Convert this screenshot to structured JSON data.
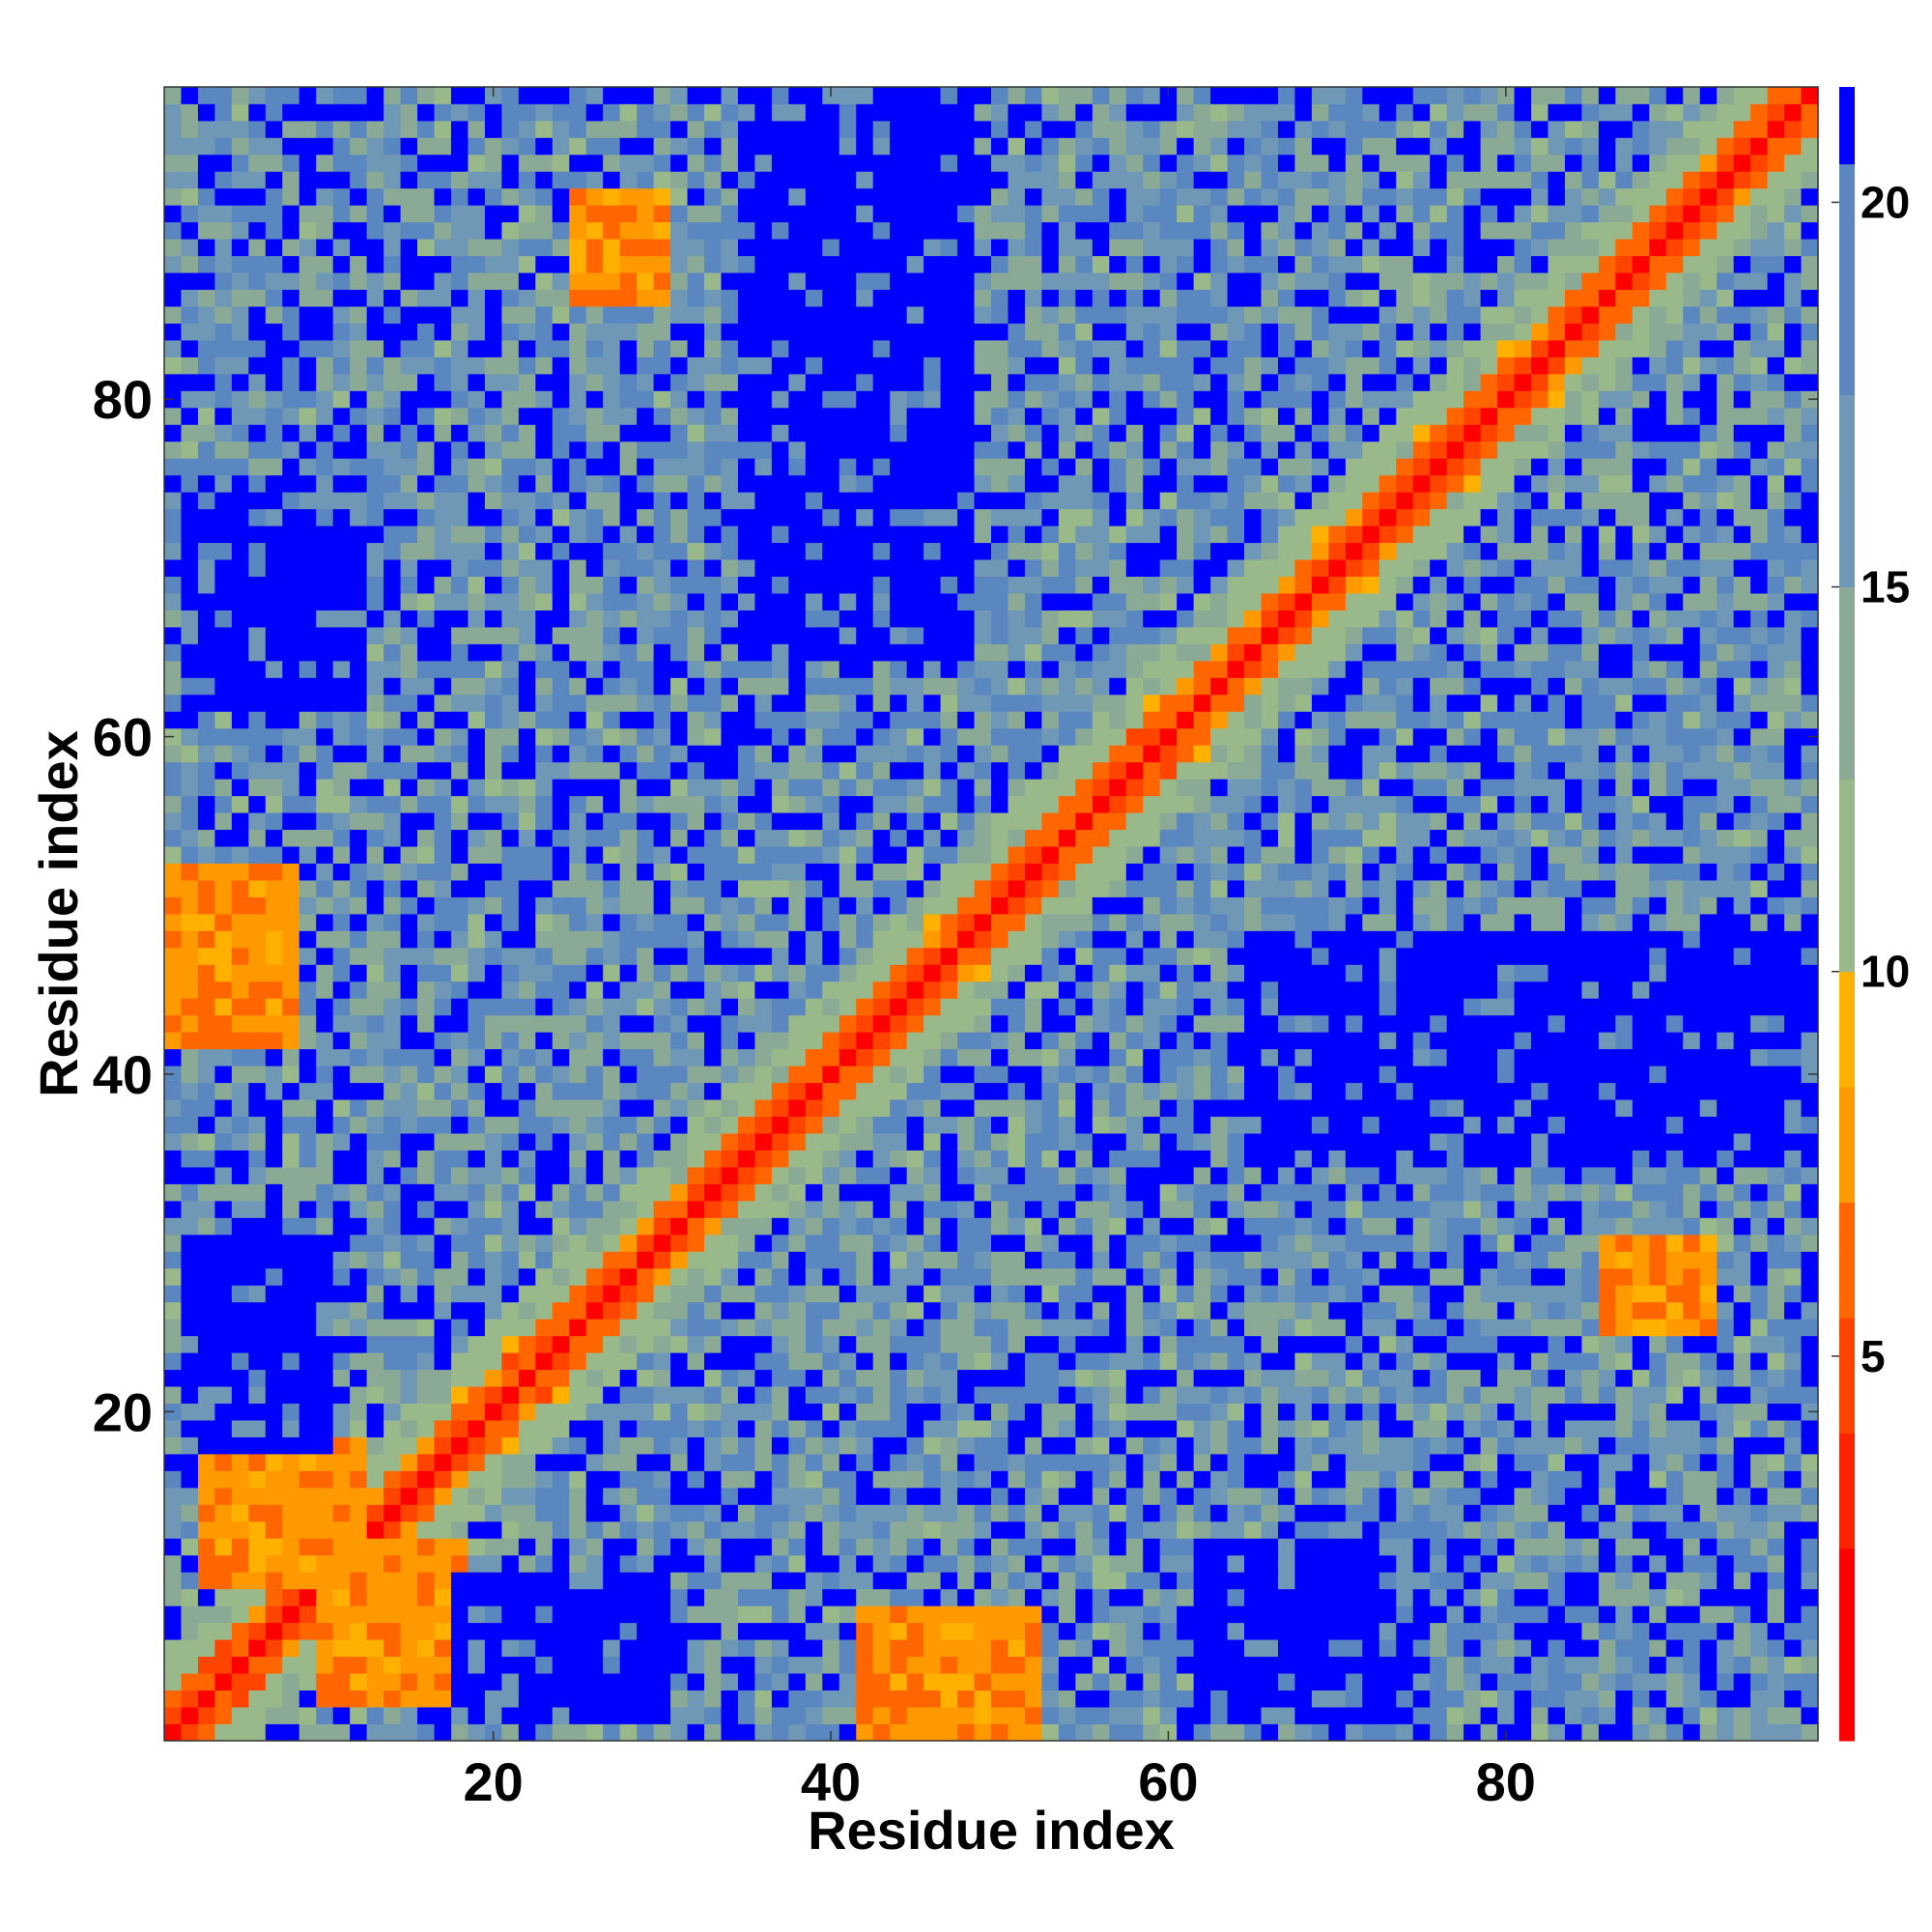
{
  "chart_data": {
    "type": "heatmap",
    "title": "",
    "xlabel": "Residue index",
    "ylabel": "Residue index",
    "n_residues": 98,
    "xlim": [
      1,
      98
    ],
    "ylim": [
      1,
      98
    ],
    "x_ticks": [
      20,
      40,
      60,
      80
    ],
    "y_ticks": [
      20,
      40,
      60,
      80
    ],
    "symmetric": true,
    "colorbar": {
      "range": [
        0,
        21.5
      ],
      "ticks": [
        5,
        10,
        15,
        20
      ],
      "bands": [
        {
          "from": 0,
          "to": 2.5,
          "color": "#ff0000"
        },
        {
          "from": 2.5,
          "to": 4.0,
          "color": "#ff2200"
        },
        {
          "from": 4.0,
          "to": 5.5,
          "color": "#ff4400"
        },
        {
          "from": 5.5,
          "to": 7.0,
          "color": "#ff6600"
        },
        {
          "from": 7.0,
          "to": 8.5,
          "color": "#ff9900"
        },
        {
          "from": 8.5,
          "to": 10.0,
          "color": "#ffb000"
        },
        {
          "from": 10.0,
          "to": 12.5,
          "color": "#9ab98a"
        },
        {
          "from": 12.5,
          "to": 15.0,
          "color": "#8aaa96"
        },
        {
          "from": 15.0,
          "to": 17.5,
          "color": "#6f98b6"
        },
        {
          "from": 17.5,
          "to": 20.5,
          "color": "#5a87c0"
        },
        {
          "from": 20.5,
          "to": 21.5,
          "color": "#0000ff"
        }
      ]
    },
    "contact_features": [
      {
        "type": "diagonal",
        "residues": [
          1,
          98
        ],
        "value": 0
      },
      {
        "type": "near-diagonal band",
        "offset_residues": [
          1,
          3
        ],
        "value_range": [
          4,
          8
        ]
      },
      {
        "type": "contact",
        "residues_i": [
          3,
          12
        ],
        "residues_j": [
          10,
          18
        ],
        "value_range": [
          6,
          9
        ]
      },
      {
        "type": "contact",
        "residues_i": [
          42,
          52
        ],
        "residues_j": [
          1,
          8
        ],
        "value_range": [
          6,
          9
        ]
      },
      {
        "type": "contact",
        "residues_i": [
          25,
          30
        ],
        "residues_j": [
          86,
          92
        ],
        "value_range": [
          6,
          9
        ]
      },
      {
        "type": "contact",
        "residues_i": [
          86,
          92
        ],
        "residues_j": [
          25,
          30
        ],
        "value_range": [
          6,
          9
        ]
      },
      {
        "type": "far region",
        "residues_i": [
          65,
          98
        ],
        "residues_j": [
          35,
          48
        ],
        "value": ">20"
      },
      {
        "type": "far region",
        "residues_i": [
          35,
          48
        ],
        "residues_j": [
          65,
          98
        ],
        "value": ">20"
      },
      {
        "type": "far region",
        "residues_i": [
          36,
          48
        ],
        "residues_j": [
          66,
          98
        ],
        "value": ">20"
      },
      {
        "type": "far region",
        "residues_i": [
          18,
          30
        ],
        "residues_j": [
          2,
          10
        ],
        "value": ">20"
      },
      {
        "type": "far region",
        "residues_i": [
          62,
          75
        ],
        "residues_j": [
          2,
          12
        ],
        "value": ">20"
      }
    ]
  }
}
